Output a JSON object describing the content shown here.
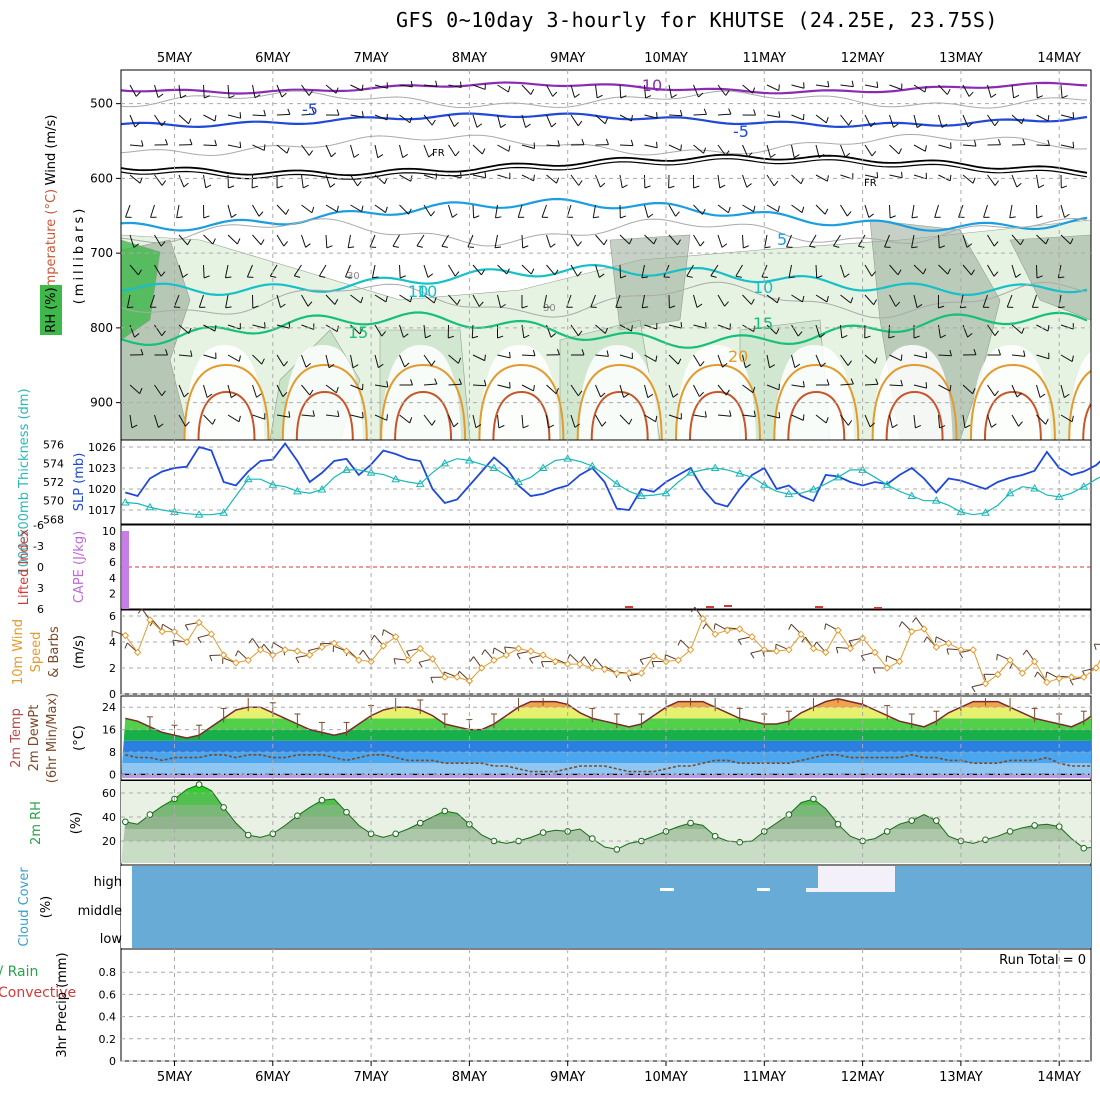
{
  "title": "GFS 0~10day 3-hourly for KHUTSE (24.25E, 23.75S)",
  "date_labels": [
    "5MAY",
    "6MAY",
    "7MAY",
    "8MAY",
    "9MAY",
    "10MAY",
    "11MAY",
    "12MAY",
    "13MAY",
    "14MAY"
  ],
  "colors": {
    "purple": "#8a2bb5",
    "blue": "#1f49d6",
    "sky": "#1a9ee0",
    "teal": "#16c0c8",
    "green": "#15c07a",
    "orange": "#e39a2e",
    "rust": "#c8542a",
    "cyan": "#19b8b8",
    "rh_light": "#e7f3e2",
    "rh_mid": "#bcdcbc",
    "rh_dark": "#98aa98",
    "cloud": "#67abd6"
  },
  "panels": {
    "upper": {
      "ylabels": {
        "wind": "Wind (m/s)",
        "temp": "Temperature (°C)",
        "rh": "RH (%)",
        "mb": "(millibars)"
      },
      "pressure_ticks": [
        "500",
        "600",
        "700",
        "800",
        "900"
      ],
      "contour_labels": [
        "-10",
        "-5",
        "-5",
        "FR",
        "FR",
        "10",
        "5",
        "30",
        "30",
        "10",
        "10",
        "15",
        "15",
        "20"
      ]
    },
    "slp": {
      "ylabel_left": "1000-500mb Thickness (dm)",
      "ylabel_right": "SLP (mb)",
      "thickness_ticks": [
        "576",
        "574",
        "572",
        "570",
        "568"
      ],
      "slp_ticks": [
        "1026",
        "1023",
        "1020",
        "1017"
      ]
    },
    "cape": {
      "ylabel_left": "Lifted Index",
      "ylabel_right": "CAPE (J/kg)",
      "li_ticks": [
        "-6",
        "-3",
        "0",
        "3",
        "6"
      ],
      "cape_ticks": [
        "10",
        "8",
        "6",
        "4",
        "2"
      ]
    },
    "wind10": {
      "ylabel_a": "10m Wind",
      "ylabel_b": "Speed",
      "ylabel_c": "& Barbs",
      "unit": "(m/s)",
      "ticks": [
        "6",
        "4",
        "2",
        "0"
      ]
    },
    "temp2m": {
      "ylabel_a": "2m Temp",
      "ylabel_b": "2m DewPt",
      "ylabel_c": "(6hr Min/Max)",
      "unit": "(°C)",
      "ticks": [
        "24",
        "16",
        "8",
        "0"
      ]
    },
    "rh2m": {
      "ylabel": "2m RH",
      "unit": "(%)",
      "ticks": [
        "60",
        "40",
        "20"
      ]
    },
    "cloud": {
      "ylabel": "Cloud Cover",
      "unit": "(%)",
      "levels": [
        "high",
        "middle",
        "low"
      ]
    },
    "precip": {
      "ylabel_a": "tal / Rain",
      "ylabel_b": "Convective",
      "ylabel_c": "3hr Precip (mm)",
      "ticks": [
        "0.8",
        "0.6",
        "0.4",
        "0.2",
        "0"
      ],
      "run_total": "Run Total = 0"
    }
  },
  "chart_data": [
    {
      "type": "line",
      "name": "sea-level-pressure-and-thickness",
      "x_start": "4MAY 12Z",
      "x_step_hours": 6,
      "series": [
        {
          "name": "SLP (mb)",
          "values": [
            1019.5,
            1019,
            1021.5,
            1022.5,
            1023,
            1023.2,
            1026,
            1025.5,
            1021,
            1020.5,
            1022.5,
            1024,
            1024.2,
            1026.5,
            1024,
            1021,
            1022.3,
            1024,
            1024.3,
            1022,
            1023.5,
            1025.5,
            1025,
            1024.3,
            1024,
            1020,
            1018,
            1018.5,
            1020.5,
            1022.5,
            1024.5,
            1023,
            1020.5,
            1019,
            1019.3,
            1020,
            1020.5,
            1022,
            1023,
            1021,
            1017.2,
            1017,
            1020,
            1019.6,
            1021,
            1022,
            1023,
            1020,
            1018,
            1017.5,
            1020,
            1022,
            1023,
            1020,
            1020.5,
            1019,
            1018.3,
            1022,
            1021.8,
            1021,
            1020.5,
            1021,
            1020.7,
            1022,
            1023,
            1021.5,
            1019.5,
            1021.5,
            1021.2,
            1020.6,
            1020,
            1021,
            1021.6,
            1022,
            1022.6,
            1025.3,
            1023,
            1022,
            1022.5,
            1023.4,
            1025
          ]
        },
        {
          "name": "1000-500mb Thickness (dm)",
          "values": [
            569.8,
            569.7,
            569.3,
            569.0,
            568.8,
            568.6,
            568.5,
            568.5,
            568.7,
            570.5,
            572.3,
            572.3,
            571.7,
            571.5,
            571.0,
            570.8,
            571.2,
            572.5,
            573.3,
            573.3,
            573.0,
            572.8,
            572.3,
            572.0,
            571.8,
            573.0,
            574.0,
            574.5,
            574.3,
            573.9,
            573.5,
            572.7,
            572.0,
            572.5,
            573.5,
            574.3,
            574.5,
            574.2,
            573.7,
            572.8,
            571.8,
            571.0,
            570.5,
            570.6,
            570.8,
            572.0,
            573.0,
            573.3,
            573.5,
            573.3,
            572.9,
            572.5,
            571.7,
            571.0,
            570.7,
            570.8,
            571.2,
            571.8,
            572.5,
            573.3,
            573.3,
            572.5,
            571.7,
            571.0,
            570.5,
            570.0,
            570.0,
            569.5,
            568.8,
            568.5,
            568.7,
            569.5,
            570.8,
            571.5,
            571.3,
            570.6,
            570.4,
            570.8,
            571.5,
            572.3,
            573.0,
            573.3,
            572.7,
            572.0,
            571.2,
            570.5,
            569.9,
            569.5,
            569.3,
            569.2,
            569.5
          ]
        }
      ],
      "slp_range": [
        1015,
        1027
      ],
      "thickness_range": [
        567.5,
        576.5
      ],
      "marker": "triangle"
    },
    {
      "type": "bar",
      "name": "cape",
      "values": [
        10,
        0,
        0,
        0,
        0
      ],
      "ylabel": "CAPE (J/kg)",
      "ylim": [
        0,
        10
      ]
    },
    {
      "type": "line",
      "name": "10m-wind-speed",
      "x_start": "4MAY 12Z",
      "x_step_hours": 3,
      "series": [
        {
          "name": "10m Wind Speed",
          "values": [
            4.5,
            3.2,
            5.7,
            4.8,
            4.8,
            4.0,
            5.5,
            4.6,
            3.0,
            2.4,
            2.6,
            3.4,
            3.0,
            3.4,
            3.3,
            3.0,
            3.6,
            3.9,
            3.3,
            2.6,
            2.5,
            3.7,
            4.4,
            2.6,
            3.5,
            2.7,
            1.3,
            1.3,
            1.0,
            2.0,
            2.6,
            3.0,
            3.5,
            3.3,
            3.0,
            2.5,
            2.3,
            2.3,
            2.0,
            1.9,
            1.6,
            1.6,
            1.6,
            2.9,
            2.5,
            2.6,
            3.4,
            5.8,
            4.6,
            4.9,
            5.0,
            4.4,
            3.4,
            3.3,
            3.4,
            4.6,
            3.5,
            3.2,
            4.9,
            3.5,
            4.3,
            3.2,
            2.0,
            2.5,
            4.8,
            5.0,
            3.6,
            3.9,
            3.4,
            3.4,
            0.8,
            1.5,
            2.6,
            1.6,
            2.5,
            0.9,
            1.2,
            1.3,
            1.3,
            2.0,
            3.8,
            3.3,
            3.1,
            4.8,
            5.3,
            4.3,
            4.4,
            4.8,
            3.2,
            3.4,
            3.2,
            2.7,
            3.3,
            4.3,
            2.1,
            3.5,
            2.3,
            3.5,
            4.0,
            3.0,
            3.0,
            2.8,
            3.2,
            3.0,
            4.0,
            3.2
          ]
        }
      ],
      "ylim": [
        0,
        6
      ]
    },
    {
      "type": "area",
      "name": "2m-temperature-and-dewpoint",
      "x_start": "4MAY 12Z",
      "x_step_hours": 3,
      "series": [
        {
          "name": "2m Temp",
          "values": [
            20,
            19,
            17,
            15,
            14,
            13,
            14,
            17,
            20,
            23,
            24,
            24,
            22,
            20,
            18,
            16,
            15,
            14,
            15,
            18,
            21,
            23,
            24,
            24,
            23,
            21,
            18,
            17,
            16,
            16,
            18,
            21,
            24,
            26,
            26,
            26,
            25,
            22,
            20,
            19,
            18,
            17,
            18,
            21,
            24,
            26,
            26,
            26,
            24,
            22,
            20,
            19,
            18,
            18,
            19,
            22,
            24,
            26,
            27,
            26,
            25,
            23,
            21,
            19,
            18,
            17,
            19,
            22,
            24,
            26,
            26,
            26,
            24,
            22,
            20,
            19,
            18,
            17,
            19,
            22,
            24,
            26,
            27,
            26,
            24,
            22,
            20,
            19,
            18,
            17,
            18,
            21,
            24,
            26,
            26,
            26,
            25,
            23,
            21,
            20,
            19,
            18,
            17,
            17
          ]
        },
        {
          "name": "2m DewPt",
          "values": [
            7,
            6,
            6,
            5,
            6,
            6,
            6,
            7,
            7,
            6,
            7,
            7,
            6,
            6,
            7,
            7,
            7,
            6,
            5,
            6,
            7,
            7,
            6,
            5,
            5,
            5,
            4,
            4,
            4,
            4,
            3,
            3,
            2,
            1,
            1,
            1,
            2,
            3,
            3,
            3,
            2,
            1,
            1,
            1,
            2,
            3,
            3,
            4,
            5,
            5,
            4,
            4,
            4,
            4,
            4,
            5,
            6,
            7,
            7,
            6,
            6,
            6,
            6,
            6,
            7,
            6,
            6,
            5,
            5,
            4,
            4,
            4,
            5,
            5,
            5,
            6,
            4,
            3,
            3,
            3,
            3,
            4,
            4,
            3,
            2,
            2,
            1,
            1,
            2,
            4,
            7,
            7,
            6,
            5,
            4,
            3,
            3,
            3,
            3,
            4,
            5,
            5,
            5,
            5
          ]
        }
      ],
      "ylim": [
        -2,
        28
      ]
    },
    {
      "type": "area",
      "name": "2m-relative-humidity",
      "x_start": "4MAY 12Z",
      "x_step_hours": 3,
      "series": [
        {
          "name": "2m RH",
          "values": [
            36,
            34,
            42,
            49,
            55,
            63,
            67,
            62,
            48,
            35,
            25,
            23,
            26,
            33,
            41,
            48,
            54,
            55,
            44,
            33,
            26,
            23,
            26,
            30,
            35,
            40,
            45,
            43,
            34,
            25,
            20,
            18,
            20,
            23,
            27,
            29,
            28,
            30,
            22,
            15,
            13,
            18,
            20,
            24,
            28,
            32,
            35,
            33,
            24,
            20,
            19,
            20,
            28,
            35,
            42,
            52,
            55,
            47,
            34,
            24,
            20,
            22,
            28,
            34,
            37,
            42,
            37,
            24,
            20,
            18,
            21,
            24,
            28,
            31,
            33,
            34,
            32,
            22,
            14,
            15,
            20,
            29,
            35,
            47,
            57,
            58,
            45,
            28,
            21,
            20,
            25,
            29,
            34,
            40,
            45,
            49,
            48
          ]
        }
      ],
      "ylim": [
        0,
        70
      ]
    },
    {
      "type": "heatmap",
      "name": "cloud-cover",
      "levels": [
        "high",
        "middle",
        "low"
      ],
      "clear_periods_high": [
        "11MAY 18Z-12MAY 12Z"
      ]
    },
    {
      "type": "bar",
      "name": "3hr-precipitation",
      "values": [],
      "ylim": [
        0,
        1.0
      ]
    }
  ]
}
